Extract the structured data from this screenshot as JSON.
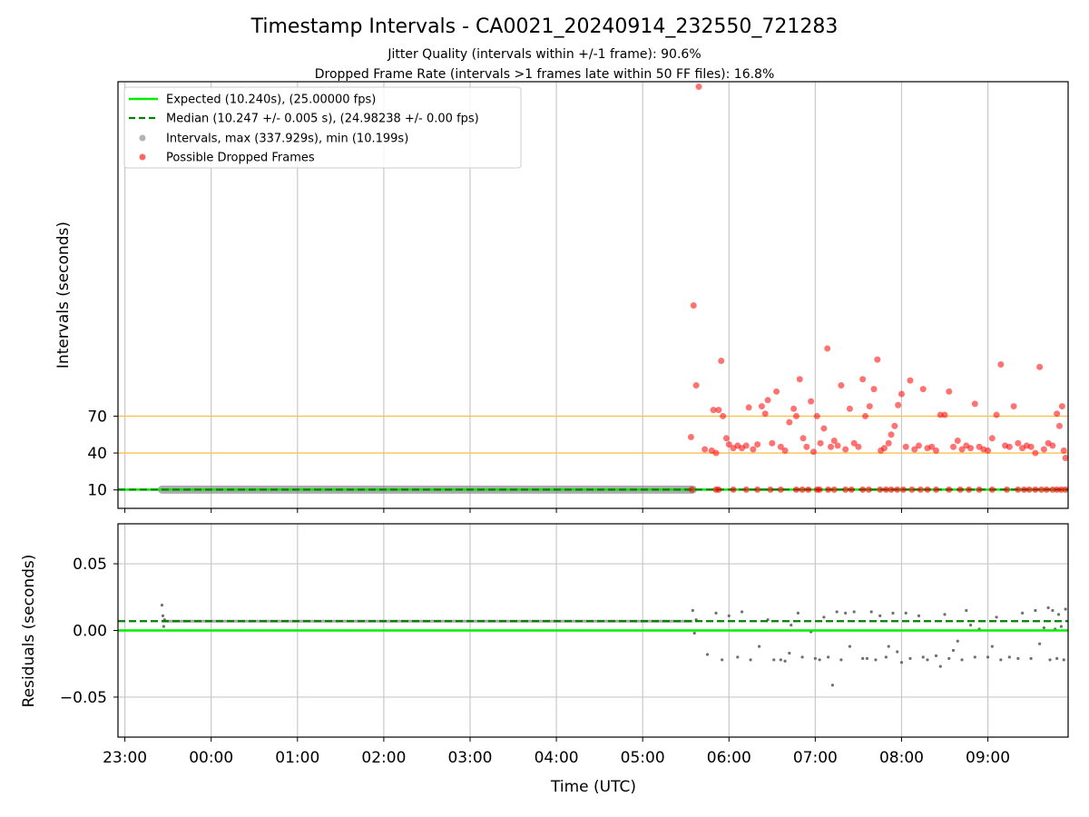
{
  "title": "Timestamp Intervals - CA0021_20240914_232550_721283",
  "subtitle_1": "Jitter Quality (intervals within +/-1 frame): 90.6%",
  "subtitle_2": "Dropped Frame Rate (intervals >1 frames late within 50 FF files): 16.8%",
  "colors": {
    "expected": "#00ee00",
    "median": "#008000",
    "intervals": "#808080",
    "dropped": "#ff0000",
    "threshold": "#ffc04d",
    "grid": "#c8c8c8"
  },
  "chart_data": [
    {
      "type": "scatter",
      "ylabel": "Intervals (seconds)",
      "y_ticks": [
        10,
        40,
        70
      ],
      "x_ticks": [
        "23:00",
        "00:00",
        "01:00",
        "02:00",
        "03:00",
        "04:00",
        "05:00",
        "06:00",
        "07:00",
        "08:00",
        "09:00"
      ],
      "x_tick_hours": [
        -1,
        0,
        1,
        2,
        3,
        4,
        5,
        6,
        7,
        8,
        9
      ],
      "xlim_hours": [
        -1.08,
        9.93
      ],
      "ylim": [
        -5,
        342
      ],
      "grid": "vertical",
      "legend_position": "upper-left",
      "legend": [
        "Expected (10.240s), (25.00000 fps)",
        "Median (10.247 +/- 0.005 s), (24.98238 +/- 0.00 fps)",
        "Intervals, max (337.929s), min (10.199s)",
        "Possible Dropped Frames"
      ],
      "expected_interval": 10.24,
      "median_interval": 10.247,
      "threshold_lines": [
        40,
        70
      ],
      "intervals_range_hours": [
        -0.57,
        5.58
      ],
      "dropped_frames": [
        {
          "t": 5.56,
          "v": 53
        },
        {
          "t": 5.59,
          "v": 160
        },
        {
          "t": 5.62,
          "v": 95
        },
        {
          "t": 5.65,
          "v": 337.9
        },
        {
          "t": 5.72,
          "v": 43
        },
        {
          "t": 5.8,
          "v": 42
        },
        {
          "t": 5.82,
          "v": 75
        },
        {
          "t": 5.85,
          "v": 40
        },
        {
          "t": 5.88,
          "v": 75
        },
        {
          "t": 5.91,
          "v": 115
        },
        {
          "t": 5.93,
          "v": 70
        },
        {
          "t": 5.97,
          "v": 52
        },
        {
          "t": 6.0,
          "v": 47
        },
        {
          "t": 6.05,
          "v": 44
        },
        {
          "t": 6.1,
          "v": 46
        },
        {
          "t": 6.15,
          "v": 44
        },
        {
          "t": 6.2,
          "v": 46
        },
        {
          "t": 6.23,
          "v": 77
        },
        {
          "t": 6.28,
          "v": 43
        },
        {
          "t": 6.33,
          "v": 47
        },
        {
          "t": 6.38,
          "v": 78
        },
        {
          "t": 6.42,
          "v": 72
        },
        {
          "t": 6.45,
          "v": 83
        },
        {
          "t": 6.5,
          "v": 48
        },
        {
          "t": 6.55,
          "v": 90
        },
        {
          "t": 6.6,
          "v": 45
        },
        {
          "t": 6.65,
          "v": 42
        },
        {
          "t": 6.7,
          "v": 65
        },
        {
          "t": 6.75,
          "v": 76
        },
        {
          "t": 6.78,
          "v": 70
        },
        {
          "t": 6.82,
          "v": 100
        },
        {
          "t": 6.86,
          "v": 52
        },
        {
          "t": 6.9,
          "v": 45
        },
        {
          "t": 6.95,
          "v": 82
        },
        {
          "t": 6.98,
          "v": 41
        },
        {
          "t": 7.02,
          "v": 70
        },
        {
          "t": 7.06,
          "v": 48
        },
        {
          "t": 7.1,
          "v": 60
        },
        {
          "t": 7.14,
          "v": 125
        },
        {
          "t": 7.18,
          "v": 45
        },
        {
          "t": 7.22,
          "v": 50
        },
        {
          "t": 7.26,
          "v": 46
        },
        {
          "t": 7.3,
          "v": 95
        },
        {
          "t": 7.35,
          "v": 43
        },
        {
          "t": 7.4,
          "v": 76
        },
        {
          "t": 7.45,
          "v": 48
        },
        {
          "t": 7.5,
          "v": 45
        },
        {
          "t": 7.55,
          "v": 100
        },
        {
          "t": 7.58,
          "v": 70
        },
        {
          "t": 7.63,
          "v": 78
        },
        {
          "t": 7.68,
          "v": 92
        },
        {
          "t": 7.72,
          "v": 116
        },
        {
          "t": 7.76,
          "v": 42
        },
        {
          "t": 7.8,
          "v": 44
        },
        {
          "t": 7.85,
          "v": 48
        },
        {
          "t": 7.88,
          "v": 55
        },
        {
          "t": 7.92,
          "v": 62
        },
        {
          "t": 7.96,
          "v": 79
        },
        {
          "t": 8.0,
          "v": 88
        },
        {
          "t": 8.05,
          "v": 45
        },
        {
          "t": 8.1,
          "v": 99
        },
        {
          "t": 8.15,
          "v": 43
        },
        {
          "t": 8.2,
          "v": 46
        },
        {
          "t": 8.25,
          "v": 92
        },
        {
          "t": 8.3,
          "v": 44
        },
        {
          "t": 8.35,
          "v": 45
        },
        {
          "t": 8.4,
          "v": 42
        },
        {
          "t": 8.45,
          "v": 71
        },
        {
          "t": 8.5,
          "v": 71
        },
        {
          "t": 8.55,
          "v": 90
        },
        {
          "t": 8.6,
          "v": 45
        },
        {
          "t": 8.65,
          "v": 50
        },
        {
          "t": 8.7,
          "v": 43
        },
        {
          "t": 8.75,
          "v": 46
        },
        {
          "t": 8.8,
          "v": 44
        },
        {
          "t": 8.85,
          "v": 80
        },
        {
          "t": 8.9,
          "v": 45
        },
        {
          "t": 8.95,
          "v": 43
        },
        {
          "t": 9.0,
          "v": 42
        },
        {
          "t": 9.05,
          "v": 52
        },
        {
          "t": 9.1,
          "v": 71
        },
        {
          "t": 9.15,
          "v": 112
        },
        {
          "t": 9.2,
          "v": 46
        },
        {
          "t": 9.25,
          "v": 45
        },
        {
          "t": 9.3,
          "v": 78
        },
        {
          "t": 9.35,
          "v": 48
        },
        {
          "t": 9.4,
          "v": 44
        },
        {
          "t": 9.45,
          "v": 46
        },
        {
          "t": 9.5,
          "v": 45
        },
        {
          "t": 9.55,
          "v": 40
        },
        {
          "t": 9.6,
          "v": 110
        },
        {
          "t": 9.65,
          "v": 43
        },
        {
          "t": 9.7,
          "v": 48
        },
        {
          "t": 9.75,
          "v": 46
        },
        {
          "t": 9.8,
          "v": 72
        },
        {
          "t": 9.83,
          "v": 62
        },
        {
          "t": 9.86,
          "v": 78
        },
        {
          "t": 9.88,
          "v": 42
        },
        {
          "t": 9.9,
          "v": 36
        }
      ],
      "dropped_near_expected_hours": [
        5.57,
        5.85,
        5.88,
        6.05,
        6.2,
        6.33,
        6.48,
        6.6,
        6.78,
        6.85,
        6.92,
        7.02,
        7.05,
        7.15,
        7.22,
        7.35,
        7.42,
        7.55,
        7.62,
        7.75,
        7.82,
        7.88,
        7.95,
        8.02,
        8.12,
        8.22,
        8.3,
        8.4,
        8.55,
        8.68,
        8.78,
        8.9,
        9.05,
        9.22,
        9.35,
        9.42,
        9.48,
        9.55,
        9.62,
        9.68,
        9.75,
        9.8,
        9.85,
        9.9
      ]
    },
    {
      "type": "scatter",
      "ylabel": "Residuals (seconds)",
      "xlabel": "Time (UTC)",
      "y_ticks": [
        0.05,
        0.0,
        -0.05
      ],
      "y_tick_labels": [
        "0.05",
        "0.00",
        "−0.05"
      ],
      "ylim": [
        -0.08,
        0.08
      ],
      "grid": "both",
      "expected_residual": 0.0,
      "median_residual": 0.007,
      "residual_points": [
        {
          "t": -0.57,
          "v": 0.019
        },
        {
          "t": -0.56,
          "v": 0.011
        },
        {
          "t": -0.55,
          "v": 0.003
        },
        {
          "t": -0.54,
          "v": 0.008
        },
        {
          "t": 5.58,
          "v": 0.015
        },
        {
          "t": 5.6,
          "v": -0.002
        },
        {
          "t": 5.62,
          "v": 0.008
        },
        {
          "t": 5.75,
          "v": -0.018
        },
        {
          "t": 5.85,
          "v": 0.013
        },
        {
          "t": 5.92,
          "v": -0.022
        },
        {
          "t": 6.0,
          "v": 0.011
        },
        {
          "t": 6.1,
          "v": -0.02
        },
        {
          "t": 6.15,
          "v": 0.014
        },
        {
          "t": 6.25,
          "v": -0.022
        },
        {
          "t": 6.35,
          "v": -0.012
        },
        {
          "t": 6.45,
          "v": 0.008
        },
        {
          "t": 6.52,
          "v": -0.022
        },
        {
          "t": 6.6,
          "v": -0.022
        },
        {
          "t": 6.65,
          "v": -0.023
        },
        {
          "t": 6.7,
          "v": -0.017
        },
        {
          "t": 6.72,
          "v": 0.004
        },
        {
          "t": 6.8,
          "v": 0.013
        },
        {
          "t": 6.85,
          "v": -0.02
        },
        {
          "t": 6.95,
          "v": -0.001
        },
        {
          "t": 7.0,
          "v": -0.021
        },
        {
          "t": 7.05,
          "v": -0.022
        },
        {
          "t": 7.1,
          "v": 0.01
        },
        {
          "t": 7.15,
          "v": -0.02
        },
        {
          "t": 7.2,
          "v": -0.041
        },
        {
          "t": 7.25,
          "v": 0.014
        },
        {
          "t": 7.3,
          "v": -0.022
        },
        {
          "t": 7.35,
          "v": 0.013
        },
        {
          "t": 7.4,
          "v": -0.012
        },
        {
          "t": 7.45,
          "v": 0.014
        },
        {
          "t": 7.55,
          "v": -0.021
        },
        {
          "t": 7.6,
          "v": -0.021
        },
        {
          "t": 7.65,
          "v": 0.014
        },
        {
          "t": 7.7,
          "v": -0.022
        },
        {
          "t": 7.75,
          "v": 0.011
        },
        {
          "t": 7.82,
          "v": -0.02
        },
        {
          "t": 7.85,
          "v": -0.012
        },
        {
          "t": 7.9,
          "v": 0.013
        },
        {
          "t": 7.95,
          "v": -0.016
        },
        {
          "t": 8.0,
          "v": -0.024
        },
        {
          "t": 8.05,
          "v": 0.013
        },
        {
          "t": 8.1,
          "v": -0.021
        },
        {
          "t": 8.2,
          "v": 0.011
        },
        {
          "t": 8.25,
          "v": -0.02
        },
        {
          "t": 8.3,
          "v": -0.022
        },
        {
          "t": 8.4,
          "v": -0.019
        },
        {
          "t": 8.45,
          "v": -0.027
        },
        {
          "t": 8.5,
          "v": 0.012
        },
        {
          "t": 8.55,
          "v": -0.021
        },
        {
          "t": 8.6,
          "v": -0.015
        },
        {
          "t": 8.65,
          "v": -0.008
        },
        {
          "t": 8.7,
          "v": -0.022
        },
        {
          "t": 8.75,
          "v": 0.015
        },
        {
          "t": 8.8,
          "v": 0.004
        },
        {
          "t": 8.85,
          "v": -0.02
        },
        {
          "t": 8.9,
          "v": 0.001
        },
        {
          "t": 9.0,
          "v": -0.02
        },
        {
          "t": 9.05,
          "v": -0.012
        },
        {
          "t": 9.1,
          "v": 0.01
        },
        {
          "t": 9.15,
          "v": -0.022
        },
        {
          "t": 9.25,
          "v": -0.02
        },
        {
          "t": 9.35,
          "v": -0.021
        },
        {
          "t": 9.4,
          "v": 0.013
        },
        {
          "t": 9.5,
          "v": -0.021
        },
        {
          "t": 9.55,
          "v": 0.015
        },
        {
          "t": 9.6,
          "v": -0.01
        },
        {
          "t": 9.65,
          "v": 0.002
        },
        {
          "t": 9.7,
          "v": 0.017
        },
        {
          "t": 9.72,
          "v": -0.022
        },
        {
          "t": 9.75,
          "v": 0.015
        },
        {
          "t": 9.78,
          "v": 0.001
        },
        {
          "t": 9.8,
          "v": -0.021
        },
        {
          "t": 9.82,
          "v": 0.012
        },
        {
          "t": 9.85,
          "v": 0.003
        },
        {
          "t": 9.88,
          "v": -0.022
        },
        {
          "t": 9.9,
          "v": 0.016
        }
      ]
    }
  ]
}
